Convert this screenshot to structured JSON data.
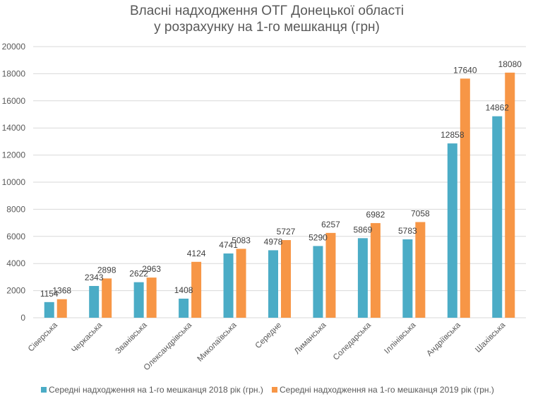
{
  "chart_data": {
    "type": "bar",
    "title": [
      "Власні надходження ОТГ Донецької області",
      "у розрахунку на 1-го мешканця (грн)"
    ],
    "xlabel": "",
    "ylabel": "",
    "ylim": [
      0,
      20000
    ],
    "yticks": [
      0,
      2000,
      4000,
      6000,
      8000,
      10000,
      12000,
      14000,
      16000,
      18000,
      20000
    ],
    "categories": [
      "Сіверська",
      "Черкаська",
      "Званівська",
      "Олександрівська",
      "Миколаївська",
      "Середне",
      "Лиманська",
      "Соледарська",
      "Іллінівська",
      "Андріївська",
      "Шахівська"
    ],
    "series": [
      {
        "name": "Середні надходження на 1-го мешканця 2018 рік  (грн.)",
        "color": "#4bacc6",
        "values": [
          1154,
          2343,
          2622,
          1408,
          4741,
          4978,
          5290,
          5869,
          5783,
          12858,
          14862
        ]
      },
      {
        "name": "Середні надходження на 1-го мешканця 2019 рік  (грн.)",
        "color": "#f79646",
        "values": [
          1368,
          2898,
          2963,
          4124,
          5083,
          5727,
          6257,
          6982,
          7058,
          17640,
          18080
        ]
      }
    ],
    "grid": true,
    "legend": "bottom"
  }
}
